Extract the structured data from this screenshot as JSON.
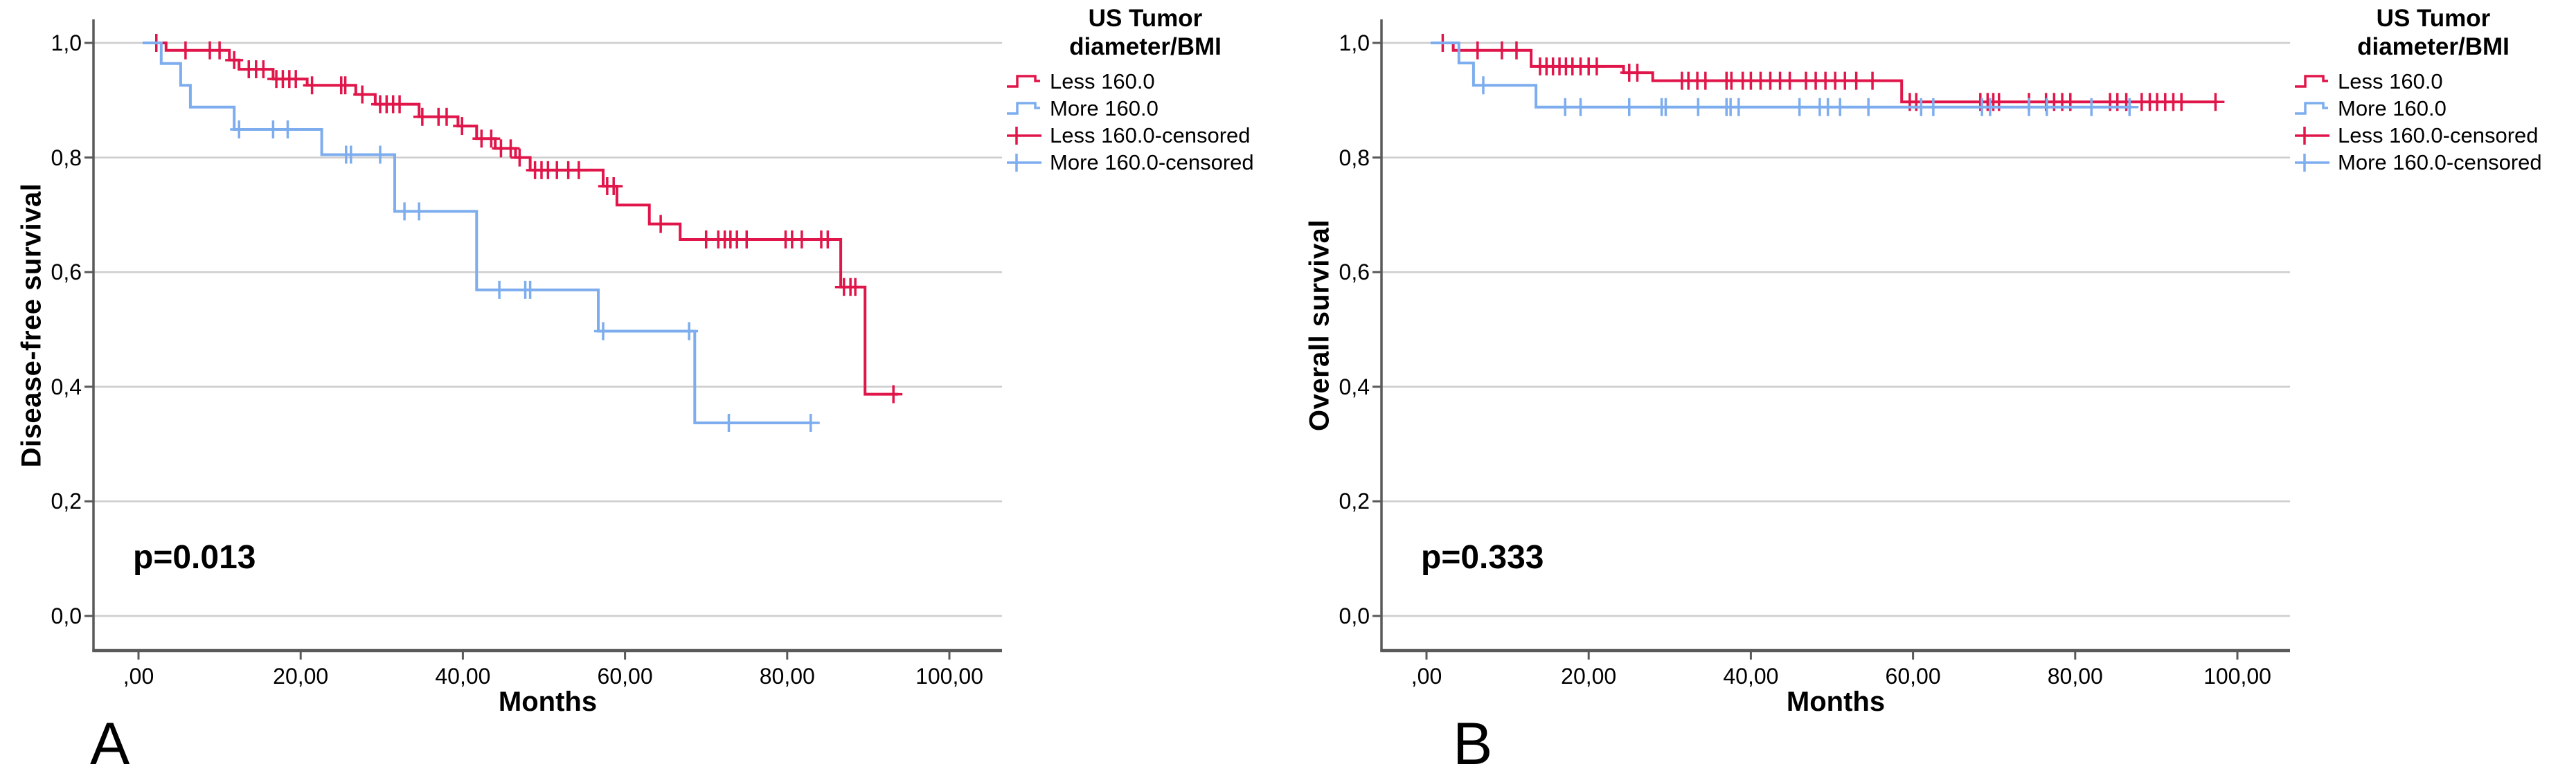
{
  "figure": {
    "background": "#ffffff",
    "grid_color": "#cdcdcd",
    "axis_color": "#595959",
    "text_color": "#000000",
    "red": "#e0164a",
    "blue": "#7dadee"
  },
  "chart_data": [
    {
      "panel_label": "A",
      "type": "line",
      "subtype": "kaplan-meier-step",
      "title": "",
      "xlabel": "Months",
      "ylabel": "Disease-free survival",
      "p_value": "p=0.013",
      "x_ticks": [
        ",00",
        "20,00",
        "40,00",
        "60,00",
        "80,00",
        "100,00"
      ],
      "x_tick_values": [
        0,
        20,
        40,
        60,
        80,
        100
      ],
      "y_ticks": [
        "1,0",
        "0,8",
        "0,6",
        "0,4",
        "0,2",
        "0,0"
      ],
      "y_tick_values": [
        1.0,
        0.8,
        0.6,
        0.4,
        0.2,
        0.0
      ],
      "xlim": [
        -5.5,
        106.5
      ],
      "ylim": [
        -0.06,
        1.05
      ],
      "grid": "horizontal",
      "legend": {
        "title_line1": "US Tumor",
        "title_line2": "diameter/BMI",
        "position": "right-top",
        "entries": [
          {
            "label": "Less 160.0",
            "marker": "step-line",
            "color": "#e0164a"
          },
          {
            "label": "More 160.0",
            "marker": "step-line",
            "color": "#7dadee"
          },
          {
            "label": "Less 160.0-censored",
            "marker": "plus",
            "color": "#e0164a"
          },
          {
            "label": "More 160.0-censored",
            "marker": "plus",
            "color": "#7dadee"
          }
        ]
      },
      "series": [
        {
          "name": "Less 160.0",
          "color": "#e0164a",
          "steps": [
            [
              1.6,
              1.0
            ],
            [
              3.4,
              0.987
            ],
            [
              11.2,
              0.97
            ],
            [
              12.4,
              0.954
            ],
            [
              16.6,
              0.937
            ],
            [
              20.8,
              0.926
            ],
            [
              26.8,
              0.91
            ],
            [
              29.2,
              0.893
            ],
            [
              34.6,
              0.871
            ],
            [
              39.4,
              0.855
            ],
            [
              41.7,
              0.833
            ],
            [
              44.0,
              0.816
            ],
            [
              46.5,
              0.8
            ],
            [
              48.3,
              0.778
            ],
            [
              57.3,
              0.75
            ],
            [
              59.0,
              0.717
            ],
            [
              63.0,
              0.684
            ],
            [
              66.8,
              0.657
            ],
            [
              86.6,
              0.574
            ],
            [
              89.6,
              0.387
            ]
          ],
          "end_month": 93.7,
          "censored_months": [
            2.2,
            5.8,
            8.8,
            10,
            11.8,
            13.6,
            14.5,
            15.4,
            17,
            17.8,
            18.6,
            19.4,
            21.4,
            25,
            25.5,
            27.6,
            29.8,
            30.6,
            31.4,
            32.2,
            35,
            37,
            38,
            39.9,
            42.3,
            43.5,
            44.7,
            45.9,
            47,
            48.9,
            49.7,
            50.5,
            51.6,
            53,
            54.3,
            57.8,
            58.6,
            64.4,
            70,
            71.5,
            72.3,
            73,
            73.8,
            75,
            79.8,
            80.6,
            81.8,
            84.2,
            85,
            87,
            87.8,
            88.4,
            93.1
          ]
        },
        {
          "name": "More 160.0",
          "color": "#7dadee",
          "steps": [
            [
              0.5,
              1.0
            ],
            [
              2.8,
              0.964
            ],
            [
              5.2,
              0.926
            ],
            [
              6.4,
              0.888
            ],
            [
              11.8,
              0.849
            ],
            [
              22.6,
              0.805
            ],
            [
              31.6,
              0.706
            ],
            [
              41.7,
              0.569
            ],
            [
              56.7,
              0.497
            ],
            [
              68.6,
              0.337
            ]
          ],
          "end_month": 83.0,
          "censored_months": [
            12.4,
            16.6,
            18.4,
            25.6,
            26.2,
            29.8,
            32.8,
            34.6,
            44.5,
            47.7,
            48.3,
            57.3,
            67.9,
            72.8,
            82.9
          ]
        }
      ]
    },
    {
      "panel_label": "B",
      "type": "line",
      "subtype": "kaplan-meier-step",
      "title": "",
      "xlabel": "Months",
      "ylabel": "Overall survival",
      "p_value": "p=0.333",
      "x_ticks": [
        ",00",
        "20,00",
        "40,00",
        "60,00",
        "80,00",
        "100,00"
      ],
      "x_tick_values": [
        0,
        20,
        40,
        60,
        80,
        100
      ],
      "y_ticks": [
        "1,0",
        "0,8",
        "0,6",
        "0,4",
        "0,2",
        "0,0"
      ],
      "y_tick_values": [
        1.0,
        0.8,
        0.6,
        0.4,
        0.2,
        0.0
      ],
      "xlim": [
        -5.5,
        106.5
      ],
      "ylim": [
        -0.06,
        1.05
      ],
      "grid": "horizontal",
      "legend": {
        "title_line1": "US Tumor",
        "title_line2": "diameter/BMI",
        "position": "right-top",
        "entries": [
          {
            "label": "Less 160.0",
            "marker": "step-line",
            "color": "#e0164a"
          },
          {
            "label": "More 160.0",
            "marker": "step-line",
            "color": "#7dadee"
          },
          {
            "label": "Less 160.0-censored",
            "marker": "plus",
            "color": "#e0164a"
          },
          {
            "label": "More 160.0-censored",
            "marker": "plus",
            "color": "#7dadee"
          }
        ]
      },
      "series": [
        {
          "name": "Less 160.0",
          "color": "#e0164a",
          "steps": [
            [
              0.6,
              1.0
            ],
            [
              3.3,
              0.987
            ],
            [
              12.9,
              0.959
            ],
            [
              24.3,
              0.948
            ],
            [
              27.9,
              0.934
            ],
            [
              58.6,
              0.897
            ]
          ],
          "end_month": 97.5,
          "censored_months": [
            2,
            6.3,
            9.3,
            11.1,
            14,
            14.8,
            15.6,
            16.4,
            17.2,
            18,
            19,
            20,
            21,
            25,
            26,
            31.5,
            32.3,
            33.4,
            34.4,
            37,
            37.6,
            39,
            40,
            41.2,
            42.4,
            43.6,
            44.8,
            46.8,
            48,
            49.2,
            50.4,
            51.6,
            53,
            55,
            59.6,
            60.4,
            68.3,
            69.2,
            69.9,
            70.6,
            74.3,
            76.4,
            77.4,
            78.4,
            79.4,
            84.3,
            85.2,
            86.3,
            88.2,
            89.2,
            90.1,
            91.1,
            92.1,
            93.1,
            97.3
          ]
        },
        {
          "name": "More 160.0",
          "color": "#7dadee",
          "steps": [
            [
              0.5,
              1.0
            ],
            [
              4.0,
              0.965
            ],
            [
              5.8,
              0.926
            ],
            [
              13.5,
              0.888
            ]
          ],
          "end_month": 87.0,
          "censored_months": [
            7,
            17.1,
            19,
            25,
            29,
            29.5,
            33.5,
            37,
            37.5,
            38.5,
            46,
            48.5,
            49.5,
            51,
            54.5,
            61,
            62.5,
            68.5,
            69.5,
            74.3,
            76.5,
            82,
            86.7
          ]
        }
      ]
    }
  ]
}
